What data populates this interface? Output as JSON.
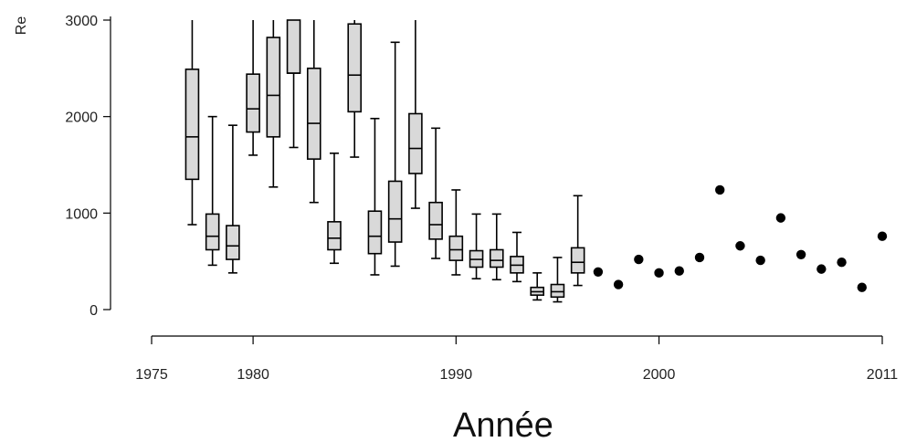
{
  "chart_data": {
    "type": "box",
    "xlabel": "Année",
    "ylabel": "Re",
    "xlim": [
      1975,
      2011
    ],
    "ylim": [
      0,
      3000
    ],
    "x_ticks": [
      1975,
      1980,
      1990,
      2000,
      2011
    ],
    "y_ticks": [
      0,
      1000,
      2000,
      3000
    ],
    "grid": false,
    "colors": {
      "box_fill": "#d9d9d9",
      "stroke": "#000000",
      "point": "#000000"
    },
    "boxes": [
      {
        "year": 1977,
        "whisker_low": 880,
        "q1": 1350,
        "median": 1790,
        "q3": 2490,
        "whisker_high": 3000
      },
      {
        "year": 1978,
        "whisker_low": 460,
        "q1": 620,
        "median": 760,
        "q3": 990,
        "whisker_high": 2000
      },
      {
        "year": 1979,
        "whisker_low": 380,
        "q1": 520,
        "median": 660,
        "q3": 870,
        "whisker_high": 1910
      },
      {
        "year": 1980,
        "whisker_low": 1600,
        "q1": 1840,
        "median": 2080,
        "q3": 2440,
        "whisker_high": 3000
      },
      {
        "year": 1981,
        "whisker_low": 1270,
        "q1": 1790,
        "median": 2220,
        "q3": 2820,
        "whisker_high": 3000
      },
      {
        "year": 1982,
        "whisker_low": 1680,
        "q1": 2450,
        "median": 2450,
        "q3": 3000,
        "whisker_high": 3000
      },
      {
        "year": 1983,
        "whisker_low": 1110,
        "q1": 1560,
        "median": 1930,
        "q3": 2500,
        "whisker_high": 3000
      },
      {
        "year": 1984,
        "whisker_low": 480,
        "q1": 620,
        "median": 740,
        "q3": 910,
        "whisker_high": 1620
      },
      {
        "year": 1985,
        "whisker_low": 1580,
        "q1": 2050,
        "median": 2430,
        "q3": 2960,
        "whisker_high": 3000
      },
      {
        "year": 1986,
        "whisker_low": 360,
        "q1": 580,
        "median": 760,
        "q3": 1020,
        "whisker_high": 1980
      },
      {
        "year": 1987,
        "whisker_low": 450,
        "q1": 700,
        "median": 940,
        "q3": 1330,
        "whisker_high": 2770
      },
      {
        "year": 1988,
        "whisker_low": 1050,
        "q1": 1410,
        "median": 1670,
        "q3": 2030,
        "whisker_high": 3000
      },
      {
        "year": 1989,
        "whisker_low": 530,
        "q1": 730,
        "median": 880,
        "q3": 1110,
        "whisker_high": 1880
      },
      {
        "year": 1990,
        "whisker_low": 360,
        "q1": 510,
        "median": 620,
        "q3": 760,
        "whisker_high": 1240
      },
      {
        "year": 1991,
        "whisker_low": 320,
        "q1": 440,
        "median": 520,
        "q3": 610,
        "whisker_high": 990
      },
      {
        "year": 1992,
        "whisker_low": 310,
        "q1": 440,
        "median": 510,
        "q3": 620,
        "whisker_high": 990
      },
      {
        "year": 1993,
        "whisker_low": 290,
        "q1": 380,
        "median": 460,
        "q3": 550,
        "whisker_high": 800
      },
      {
        "year": 1994,
        "whisker_low": 100,
        "q1": 150,
        "median": 185,
        "q3": 230,
        "whisker_high": 380
      },
      {
        "year": 1995,
        "whisker_low": 80,
        "q1": 130,
        "median": 185,
        "q3": 260,
        "whisker_high": 540
      },
      {
        "year": 1996,
        "whisker_low": 250,
        "q1": 380,
        "median": 490,
        "q3": 640,
        "whisker_high": 1180
      }
    ],
    "points": [
      {
        "year": 1997,
        "value": 390
      },
      {
        "year": 1998,
        "value": 260
      },
      {
        "year": 1999,
        "value": 520
      },
      {
        "year": 2000,
        "value": 380
      },
      {
        "year": 2001,
        "value": 400
      },
      {
        "year": 2002,
        "value": 540
      },
      {
        "year": 2003,
        "value": 1240
      },
      {
        "year": 2004,
        "value": 660
      },
      {
        "year": 2005,
        "value": 510
      },
      {
        "year": 2006,
        "value": 950
      },
      {
        "year": 2007,
        "value": 570
      },
      {
        "year": 2008,
        "value": 420
      },
      {
        "year": 2009,
        "value": 490
      },
      {
        "year": 2010,
        "value": 230
      },
      {
        "year": 2011,
        "value": 760
      }
    ]
  }
}
